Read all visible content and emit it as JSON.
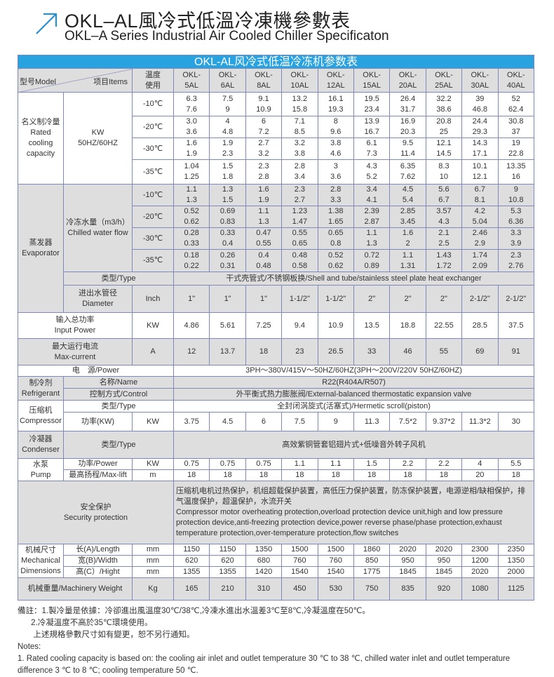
{
  "title": {
    "cn": "OKL–AL風冷式低溫冷凍機參數表",
    "en": "OKL–A Series Industrial Air Cooled Chiller Specificaton",
    "icon": "arrow-up-right-icon",
    "accent": "#2a8fd0"
  },
  "table": {
    "banner": "OKL-AL风冷式低温冷冻机参数表",
    "banner_color": "#29a3df",
    "header": {
      "model": "型号Model",
      "items": "项目Items",
      "temp": "温度\n使用",
      "models": [
        "OKL-\n5AL",
        "OKL-\n6AL",
        "OKL-\n8AL",
        "OKL-\n10AL",
        "OKL-\n12AL",
        "OKL-\n15AL",
        "OKL-\n20AL",
        "OKL-\n25AL",
        "OKL-\n30AL",
        "OKL-\n40AL"
      ]
    },
    "cooling": {
      "label": "名义制冷量\nRated\ncooling\ncapacity",
      "unit": "KW\n50HZ/60HZ",
      "rows": [
        {
          "temp": "-10℃",
          "values": [
            "6.3\n7.6",
            "7.5\n9",
            "9.1\n10.9",
            "13.2\n15.8",
            "16.1\n19.3",
            "19.5\n23.4",
            "26.4\n31.7",
            "32.2\n38.6",
            "39\n46.8",
            "52\n62.4"
          ]
        },
        {
          "temp": "-20℃",
          "values": [
            "3.0\n3.6",
            "4\n4.8",
            "6\n7.2",
            "7.1\n8.5",
            "8\n9.6",
            "13.9\n16.7",
            "16.9\n20.3",
            "20.8\n25",
            "24.4\n29.3",
            "30.8\n37"
          ]
        },
        {
          "temp": "-30℃",
          "values": [
            "1.6\n1.9",
            "1.9\n2.3",
            "2.7\n3.2",
            "3.2\n3.8",
            "3.8\n4.6",
            "6.1\n7.3",
            "9.5\n11.4",
            "12.1\n14.5",
            "14.3\n17.1",
            "19\n22.8"
          ]
        },
        {
          "temp": "-35℃",
          "values": [
            "1.04\n1.25",
            "1.5\n1.8",
            "2.3\n2.8",
            "2.8\n3.4",
            "3\n3.6",
            "4.3\n5.2",
            "6.35\n7.62",
            "8.3\n10",
            "10.1\n12.1",
            "13.35\n16"
          ]
        }
      ]
    },
    "evaporator": {
      "label": "蒸发器\nEvaporator",
      "flow_label": "冷冻水量（m3/h）\nChilled water flow",
      "rows": [
        {
          "temp": "-10℃",
          "values": [
            "1.1\n1.3",
            "1.3\n1.5",
            "1.6\n1.9",
            "2.3\n2.7",
            "2.8\n3.3",
            "3.4\n4.1",
            "4.5\n5.4",
            "5.6\n6.7",
            "6.7\n8.1",
            "9\n10.8"
          ]
        },
        {
          "temp": "-20℃",
          "values": [
            "0.52\n0.62",
            "0.69\n0.83",
            "1.1\n1.3",
            "1.23\n1.47",
            "1.38\n1.65",
            "2.39\n2.87",
            "2.85\n3.45",
            "3.57\n4.3",
            "4.2\n5.04",
            "5.3\n6.36"
          ]
        },
        {
          "temp": "-30℃",
          "values": [
            "0.28\n0.33",
            "0.33\n0.4",
            "0.47\n0.55",
            "0.55\n0.65",
            "0.65\n0.8",
            "1.1\n1.3",
            "1.6\n2",
            "2.1\n2.5",
            "2.46\n2.9",
            "3.3\n3.9"
          ]
        },
        {
          "temp": "-35℃",
          "values": [
            "0.18\n0.22",
            "0.26\n0.31",
            "0.4\n0.48",
            "0.48\n0.58",
            "0.52\n0.62",
            "0.72\n0.89",
            "1.1\n1.31",
            "1.43\n1.72",
            "1.74\n2.09",
            "2.3\n2.76"
          ]
        }
      ],
      "type_label": "类型/Type",
      "type_value": "干式壳管式/不锈钢板换/Shell and tube/stainless steel plate heat exchanger",
      "diameter_label": "进出水管径\nDiameter",
      "diameter_unit": "Inch",
      "diameter_values": [
        "1\"",
        "1\"",
        "1\"",
        "1-1/2\"",
        "1-1/2\"",
        "2\"",
        "2\"",
        "2\"",
        "2-1/2\"",
        "2-1/2\""
      ]
    },
    "input_power": {
      "label": "输入总功率\nInput Power",
      "unit": "KW",
      "values": [
        "4.86",
        "5.61",
        "7.25",
        "9.4",
        "10.9",
        "13.5",
        "18.8",
        "22.55",
        "28.5",
        "37.5"
      ]
    },
    "max_current": {
      "label": "最大运行电流\nMax-current",
      "unit": "A",
      "values": [
        "12",
        "13.7",
        "18",
        "23",
        "26.5",
        "33",
        "46",
        "55",
        "69",
        "91"
      ]
    },
    "power": {
      "label": "电　源/Power",
      "value": "3PH～380V/415V～50HZ/60HZ(3PH～200V/220V  50HZ/60HZ)"
    },
    "refrigerant": {
      "label": "制冷剂\nRefrigerant",
      "name_label": "名称/Name",
      "name_value": "R22(R404A/R507)",
      "control_label": "控制方式/Control",
      "control_value": "外平衡式热力膨胀阀/External-balanced thermostatic expansion valve"
    },
    "compressor": {
      "label": "压缩机\nCompressor",
      "type_label": "类型/Type",
      "type_value": "全封闭涡旋式(活塞式)/Hermetic scroll(piston)",
      "power_label": "功率(KW)",
      "unit": "KW",
      "values": [
        "3.75",
        "4.5",
        "6",
        "7.5",
        "9",
        "11.3",
        "7.5*2",
        "9.37*2",
        "11.3*2",
        "30"
      ]
    },
    "condenser": {
      "label": "冷凝器\nCondenser",
      "type_label": "类型/Type",
      "type_value": "高效紫铜管套铝翅片式+低噪音外转子风机"
    },
    "pump": {
      "label": "水泵\nPump",
      "power_label": "功率/Power",
      "power_unit": "KW",
      "power_values": [
        "0.75",
        "0.75",
        "0.75",
        "1.1",
        "1.1",
        "1.5",
        "2.2",
        "2.2",
        "4",
        "5.5"
      ],
      "lift_label": "最高扬程/Max-lift",
      "lift_unit": "m",
      "lift_values": [
        "18",
        "18",
        "18",
        "18",
        "18",
        "18",
        "18",
        "18",
        "20",
        "18"
      ]
    },
    "security": {
      "label": "安全保护\nSecurity protection",
      "text": "压缩机电机过热保护，机组超载保护装置，高低压力保护装置，防冻保护装置，电源逆相/缺相保护，排气温度保护，超温保护，水流开关\n Compressor motor overheating protection,overload protection device unit,high and low pressure protection device,anti-freezing protection device,power reverse phase/phase protection,exhaust temperature protection,over-temperature protection,flow switches"
    },
    "dimensions": {
      "label": "机械尺寸\nMechanical\nDimensions",
      "unit": "mm",
      "rows": [
        {
          "label": "长(A)/Length",
          "values": [
            "1150",
            "1150",
            "1350",
            "1500",
            "1500",
            "1860",
            "2020",
            "2020",
            "2300",
            "2350"
          ]
        },
        {
          "label": "宽(B)/Width",
          "values": [
            "620",
            "620",
            "680",
            "760",
            "760",
            "850",
            "950",
            "950",
            "1200",
            "1350"
          ]
        },
        {
          "label": "高(C）/Hight",
          "values": [
            "1355",
            "1355",
            "1420",
            "1540",
            "1540",
            "1775",
            "1845",
            "1845",
            "2020",
            "2000"
          ]
        }
      ]
    },
    "weight": {
      "label": "机械重量/Machinery Weight",
      "unit": "Kg",
      "values": [
        "165",
        "210",
        "310",
        "450",
        "530",
        "750",
        "835",
        "920",
        "1080",
        "1125"
      ]
    }
  },
  "notes": {
    "lines": [
      "備註：1.製冷量是依據：冷卻進出風溫度30℃/38℃,冷凍水進出水溫差3℃至8℃,冷凝溫度在50℃。",
      "      2.冷凝溫度不高於35℃環境使用。",
      "       上述規格參數尺寸如有變更，恕不另行通知。",
      "Notes:",
      "1. Rated cooling capacity is based on: the cooling air inlet and outlet temperature 30 ℃ to 38 ℃, chilled water inlet and outlet temperature",
      "difference 3 ℃ to 8 ℃; cooling temperature 50 ℃."
    ]
  }
}
